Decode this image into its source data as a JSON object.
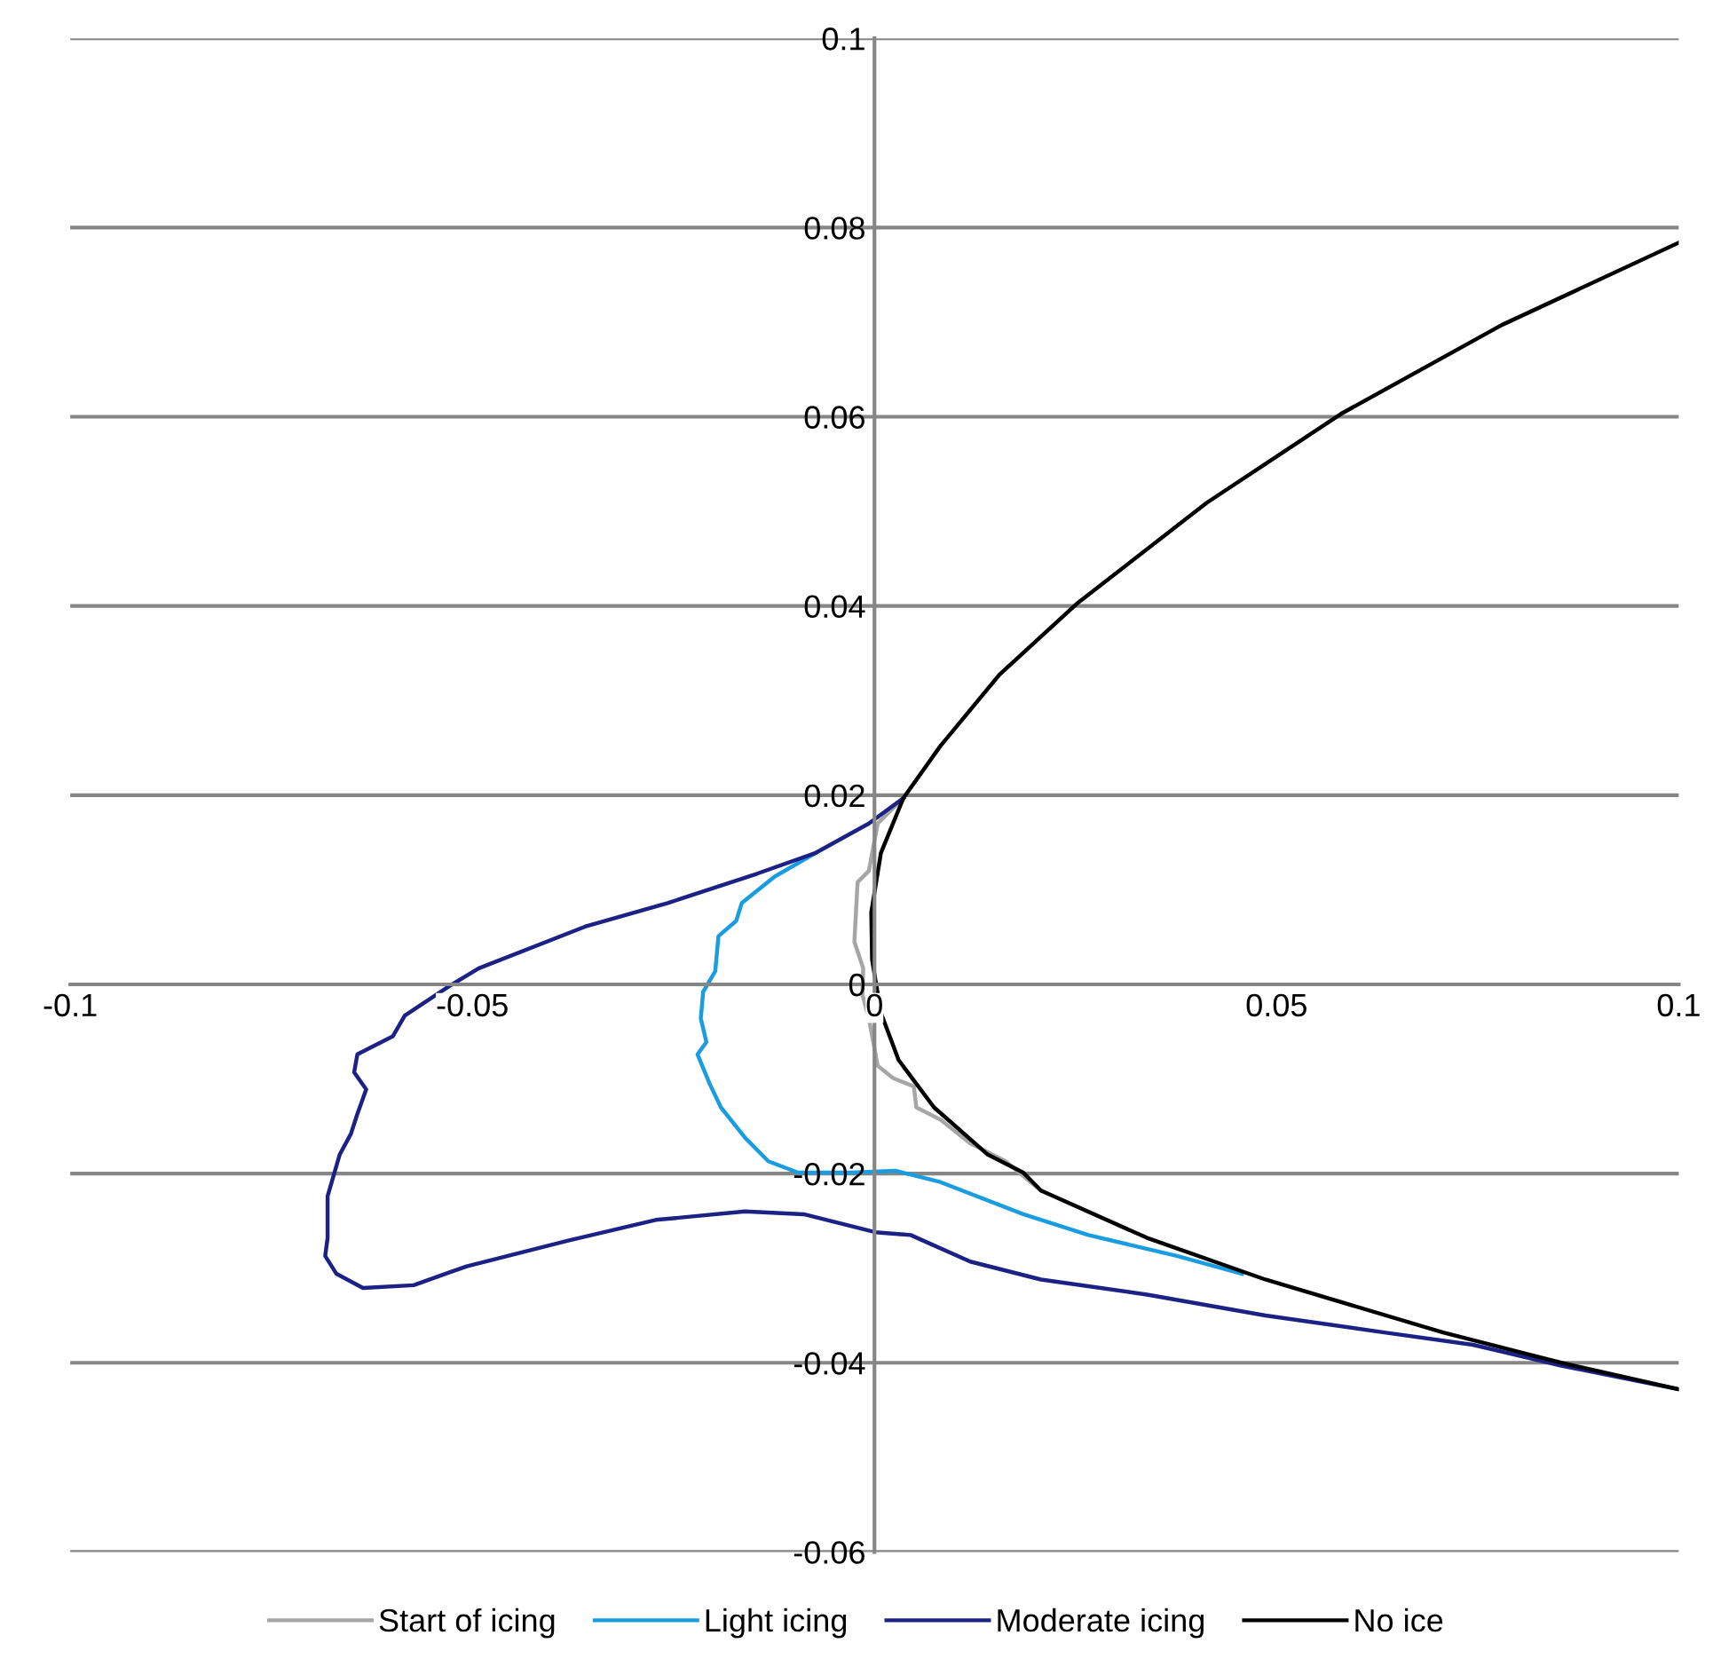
{
  "chart_data": {
    "type": "line",
    "xlim": [
      -0.1,
      0.1
    ],
    "ylim": [
      -0.06,
      0.1
    ],
    "xticks": [
      -0.1,
      -0.05,
      0,
      0.05,
      0.1
    ],
    "yticks": [
      -0.06,
      -0.04,
      -0.02,
      0,
      0.02,
      0.04,
      0.06,
      0.08,
      0.1
    ],
    "grid": "y",
    "legend": "bottom",
    "marker": "none",
    "line_style": "solid",
    "series": [
      {
        "name": "Start of icing",
        "color": "#a6a6a6",
        "x": [
          0.0036,
          0.0004,
          -0.0007,
          -0.0021,
          -0.0025,
          -0.0014,
          -0.0015,
          -0.0007,
          0.0004,
          0.0023,
          0.0049,
          0.0052,
          0.0082,
          0.0119,
          0.0163,
          0.0207
        ],
        "values": [
          0.0197,
          0.017,
          0.012,
          0.0108,
          0.0045,
          0.0017,
          -0.0011,
          -0.0036,
          -0.0086,
          -0.0099,
          -0.0108,
          -0.013,
          -0.0143,
          -0.0168,
          -0.0187,
          -0.0218
        ]
      },
      {
        "name": "Light icing",
        "color": "#1a9ce0",
        "x": [
          -0.0073,
          -0.0124,
          -0.0165,
          -0.0172,
          -0.0194,
          -0.0198,
          -0.0213,
          -0.0216,
          -0.0209,
          -0.022,
          -0.0205,
          -0.0191,
          -0.0161,
          -0.0132,
          -0.0095,
          -0.0051,
          -0.0029,
          0.0026,
          0.0082,
          0.0185,
          0.0266,
          0.0376,
          0.0457
        ],
        "values": [
          0.0139,
          0.0114,
          0.0086,
          0.0067,
          0.0051,
          0.0014,
          -0.0008,
          -0.0036,
          -0.0061,
          -0.0074,
          -0.0105,
          -0.013,
          -0.0162,
          -0.0187,
          -0.0199,
          -0.0199,
          -0.0199,
          -0.0197,
          -0.0209,
          -0.0243,
          -0.0265,
          -0.0287,
          -0.0306
        ]
      },
      {
        "name": "Moderate icing",
        "color": "#1b2185",
        "x": [
          0.0036,
          -0.0007,
          -0.0073,
          -0.0146,
          -0.0257,
          -0.036,
          -0.0492,
          -0.0529,
          -0.0584,
          -0.0599,
          -0.0643,
          -0.0647,
          -0.0632,
          -0.0643,
          -0.0651,
          -0.0665,
          -0.068,
          -0.068,
          -0.0683,
          -0.0669,
          -0.0636,
          -0.0573,
          -0.0507,
          -0.0382,
          -0.0272,
          -0.0161,
          -0.0088,
          0.0001,
          0.0045,
          0.0119,
          0.0207,
          0.0339,
          0.0486,
          0.0634,
          0.0744,
          0.0854,
          0.1
        ],
        "values": [
          0.0197,
          0.017,
          0.0139,
          0.0117,
          0.0086,
          0.0061,
          0.0017,
          -0.0002,
          -0.0033,
          -0.0055,
          -0.0074,
          -0.0093,
          -0.0111,
          -0.0137,
          -0.0158,
          -0.018,
          -0.0224,
          -0.0268,
          -0.0287,
          -0.0306,
          -0.0321,
          -0.0318,
          -0.0298,
          -0.0271,
          -0.0249,
          -0.024,
          -0.0243,
          -0.0262,
          -0.0265,
          -0.0293,
          -0.0312,
          -0.0328,
          -0.035,
          -0.0368,
          -0.0381,
          -0.0403,
          -0.0428
        ]
      },
      {
        "name": "No ice",
        "color": "#000000",
        "x": [
          0.1,
          0.078,
          0.058,
          0.0413,
          0.0251,
          0.0155,
          0.0082,
          0.0036,
          0.0008,
          -0.0004,
          -0.0003,
          0.0008,
          0.003,
          0.0074,
          0.0141,
          0.0185,
          0.0207,
          0.0339,
          0.0486,
          0.0707,
          0.0854,
          0.1
        ],
        "values": [
          0.0784,
          0.0697,
          0.0603,
          0.0509,
          0.0402,
          0.0327,
          0.0252,
          0.0197,
          0.0139,
          0.0076,
          0.0026,
          -0.003,
          -0.008,
          -0.013,
          -0.018,
          -0.0199,
          -0.0218,
          -0.0268,
          -0.0312,
          -0.0368,
          -0.04,
          -0.0428
        ]
      }
    ]
  }
}
